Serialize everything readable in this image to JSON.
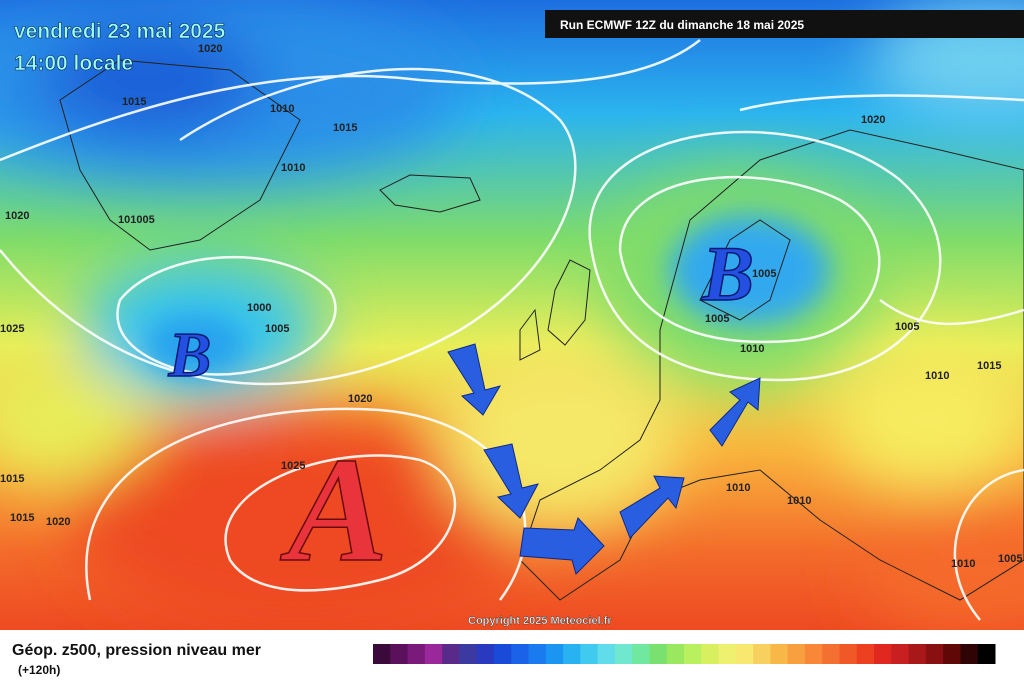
{
  "header": {
    "date": "vendredi 23 mai 2025",
    "time": "14:00 locale",
    "run": "Run ECMWF 12Z du dimanche 18 mai 2025"
  },
  "map": {
    "pressure_labels": [
      "1020",
      "1015",
      "1010",
      "1015",
      "1010",
      "1020",
      "101005",
      "1000",
      "1005",
      "1025",
      "1020",
      "1025",
      "1015",
      "1015",
      "1020",
      "1020",
      "1005",
      "1005",
      "1010",
      "1005",
      "1010",
      "1015",
      "1010",
      "1010",
      "1010",
      "1005"
    ],
    "systems": [
      "B",
      "B",
      "A"
    ],
    "copyright": "Copyright 2025 Meteociel.fr"
  },
  "footer": {
    "title": "Géop. z500, pression niveau mer",
    "lead": "(+120h)"
  }
}
